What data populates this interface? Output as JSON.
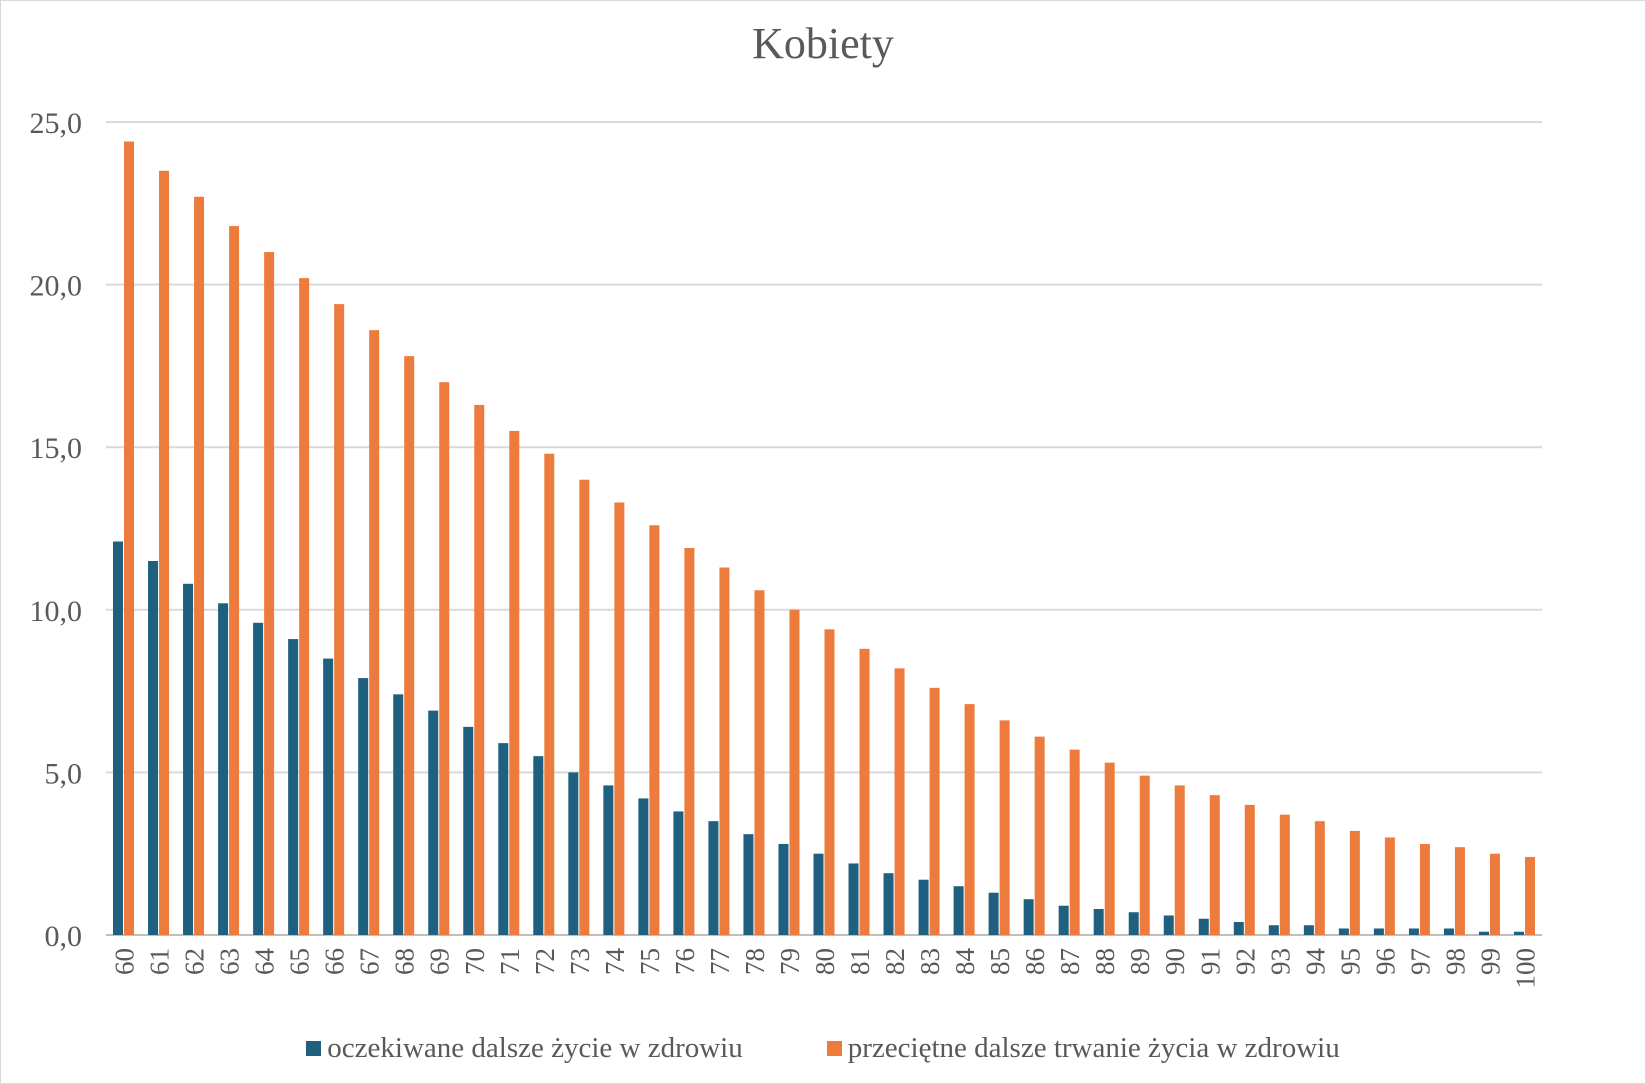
{
  "chart_data": {
    "type": "bar",
    "title": "Kobiety",
    "xlabel": "",
    "ylabel": "",
    "ylim": [
      0,
      25
    ],
    "y_ticks": [
      "0,0",
      "5,0",
      "10,0",
      "15,0",
      "20,0",
      "25,0"
    ],
    "y_tick_values": [
      0,
      5,
      10,
      15,
      20,
      25
    ],
    "grid": true,
    "legend_position": "bottom",
    "categories": [
      "60",
      "61",
      "62",
      "63",
      "64",
      "65",
      "66",
      "67",
      "68",
      "69",
      "70",
      "71",
      "72",
      "73",
      "74",
      "75",
      "76",
      "77",
      "78",
      "79",
      "80",
      "81",
      "82",
      "83",
      "84",
      "85",
      "86",
      "87",
      "88",
      "89",
      "90",
      "91",
      "92",
      "93",
      "94",
      "95",
      "96",
      "97",
      "98",
      "99",
      "100"
    ],
    "series": [
      {
        "name": "oczekiwane dalsze życie w zdrowiu",
        "color": "#1f5f7f",
        "values": [
          12.1,
          11.5,
          10.8,
          10.2,
          9.6,
          9.1,
          8.5,
          7.9,
          7.4,
          6.9,
          6.4,
          5.9,
          5.5,
          5.0,
          4.6,
          4.2,
          3.8,
          3.5,
          3.1,
          2.8,
          2.5,
          2.2,
          1.9,
          1.7,
          1.5,
          1.3,
          1.1,
          0.9,
          0.8,
          0.7,
          0.6,
          0.5,
          0.4,
          0.3,
          0.3,
          0.2,
          0.2,
          0.2,
          0.2,
          0.1,
          0.1
        ]
      },
      {
        "name": "przeciętne dalsze trwanie życia w zdrowiu",
        "color": "#ee7b3e",
        "values": [
          24.4,
          23.5,
          22.7,
          21.8,
          21.0,
          20.2,
          19.4,
          18.6,
          17.8,
          17.0,
          16.3,
          15.5,
          14.8,
          14.0,
          13.3,
          12.6,
          11.9,
          11.3,
          10.6,
          10.0,
          9.4,
          8.8,
          8.2,
          7.6,
          7.1,
          6.6,
          6.1,
          5.7,
          5.3,
          4.9,
          4.6,
          4.3,
          4.0,
          3.7,
          3.5,
          3.2,
          3.0,
          2.8,
          2.7,
          2.5,
          2.4
        ]
      }
    ]
  }
}
